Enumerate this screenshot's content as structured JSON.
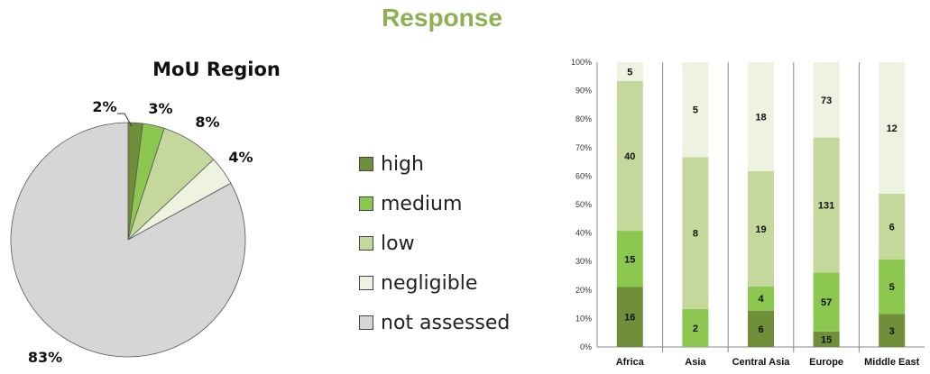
{
  "title": "Response",
  "colors": {
    "title": "#8db052",
    "high": "#6f8f3a",
    "medium": "#8cc74f",
    "low": "#c5d89c",
    "negligible": "#eef2e0",
    "not_assessed": "#d6d6d6"
  },
  "legend": [
    {
      "key": "high",
      "label": "high"
    },
    {
      "key": "medium",
      "label": "medium"
    },
    {
      "key": "low",
      "label": "low"
    },
    {
      "key": "negligible",
      "label": "negligible"
    },
    {
      "key": "not_assessed",
      "label": "not assessed"
    }
  ],
  "chart_data": [
    {
      "type": "pie",
      "title": "MoU Region",
      "slices": [
        {
          "key": "high",
          "value": 2,
          "label": "2%"
        },
        {
          "key": "medium",
          "value": 3,
          "label": "3%"
        },
        {
          "key": "low",
          "value": 8,
          "label": "8%"
        },
        {
          "key": "negligible",
          "value": 4,
          "label": "4%"
        },
        {
          "key": "not_assessed",
          "value": 83,
          "label": "83%"
        }
      ]
    },
    {
      "type": "bar",
      "stacked": "percent",
      "categories": [
        "Africa",
        "Asia",
        "Central Asia",
        "Europe",
        "Middle East"
      ],
      "series": [
        {
          "key": "high",
          "values": [
            16,
            0,
            6,
            15,
            3
          ]
        },
        {
          "key": "medium",
          "values": [
            15,
            2,
            4,
            57,
            5
          ]
        },
        {
          "key": "low",
          "values": [
            40,
            8,
            19,
            131,
            6
          ]
        },
        {
          "key": "negligible",
          "values": [
            5,
            5,
            18,
            73,
            12
          ]
        }
      ],
      "ylim": [
        0,
        100
      ],
      "yticks": [
        "0%",
        "10%",
        "20%",
        "30%",
        "40%",
        "50%",
        "60%",
        "70%",
        "80%",
        "90%",
        "100%"
      ],
      "grid": false
    }
  ]
}
